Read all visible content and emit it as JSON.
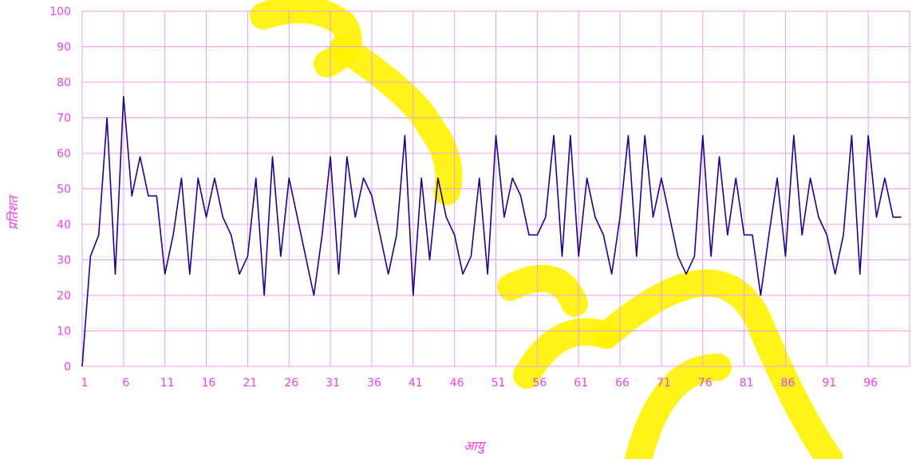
{
  "colors": {
    "line": "#20008a",
    "grid": "#ef9cf2",
    "text": "#f040f0",
    "watermark": "#fff200"
  },
  "chart_data": {
    "type": "line",
    "title": "",
    "xlabel": "आयु",
    "ylabel": "प्रतिशत",
    "ylim": [
      0,
      100
    ],
    "yticks": [
      "0",
      "10",
      "20",
      "30",
      "40",
      "50",
      "60",
      "70",
      "80",
      "90",
      "100"
    ],
    "xticks": [
      "1",
      "6",
      "11",
      "16",
      "21",
      "26",
      "31",
      "36",
      "41",
      "46",
      "51",
      "56",
      "61",
      "66",
      "71",
      "76",
      "81",
      "86",
      "91",
      "96"
    ],
    "grid": true,
    "legend": "none",
    "x": [
      1,
      2,
      3,
      4,
      5,
      6,
      7,
      8,
      9,
      10,
      11,
      12,
      13,
      14,
      15,
      16,
      17,
      18,
      19,
      20,
      21,
      22,
      23,
      24,
      25,
      26,
      27,
      28,
      29,
      30,
      31,
      32,
      33,
      34,
      35,
      36,
      37,
      38,
      39,
      40,
      41,
      42,
      43,
      44,
      45,
      46,
      47,
      48,
      49,
      50,
      51,
      52,
      53,
      54,
      55,
      56,
      57,
      58,
      59,
      60,
      61,
      62,
      63,
      64,
      65,
      66,
      67,
      68,
      69,
      70,
      71,
      72,
      73,
      74,
      75,
      76,
      77,
      78,
      79,
      80,
      81,
      82,
      83,
      84,
      85,
      86,
      87,
      88,
      89,
      90,
      91,
      92,
      93,
      94,
      95,
      96,
      97,
      98,
      99,
      100
    ],
    "series": [
      {
        "values": [
          0,
          31,
          37,
          70,
          26,
          76,
          48,
          59,
          48,
          48,
          26,
          37,
          53,
          26,
          53,
          42,
          53,
          42,
          37,
          26,
          31,
          53,
          20,
          59,
          31,
          53,
          42,
          31,
          20,
          37,
          59,
          26,
          59,
          42,
          53,
          48,
          37,
          26,
          37,
          65,
          20,
          53,
          30,
          53,
          42,
          37,
          26,
          31,
          53,
          26,
          65,
          42,
          53,
          48,
          37,
          37,
          42,
          65,
          31,
          65,
          31,
          53,
          42,
          37,
          26,
          42,
          65,
          31,
          65,
          42,
          53,
          42,
          31,
          26,
          31,
          65,
          31,
          59,
          37,
          53,
          37,
          37,
          20,
          37,
          53,
          31,
          65,
          37,
          53,
          42,
          37,
          26,
          37,
          65,
          26,
          65,
          42,
          53,
          42,
          42
        ]
      }
    ]
  }
}
